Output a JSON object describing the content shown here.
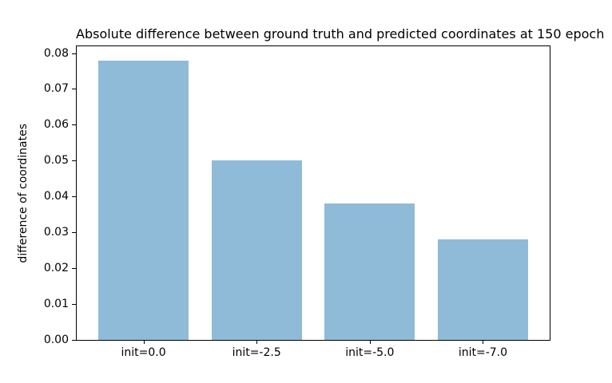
{
  "chart_data": {
    "type": "bar",
    "title": "Absolute difference between ground truth and predicted coordinates at 150 epoch",
    "xlabel": "",
    "ylabel": "difference of coordinates",
    "categories": [
      "init=0.0",
      "init=-2.5",
      "init=-5.0",
      "init=-7.0"
    ],
    "values": [
      0.078,
      0.05,
      0.038,
      0.028
    ],
    "ytick_labels": [
      "0.00",
      "0.01",
      "0.02",
      "0.03",
      "0.04",
      "0.05",
      "0.06",
      "0.07",
      "0.08"
    ],
    "ylim": [
      0,
      0.0819
    ],
    "grid": false,
    "legend": "none",
    "colors": {
      "bar": "#8fbbd9",
      "text": "#000000",
      "spine": "#000000",
      "background": "#ffffff"
    }
  }
}
